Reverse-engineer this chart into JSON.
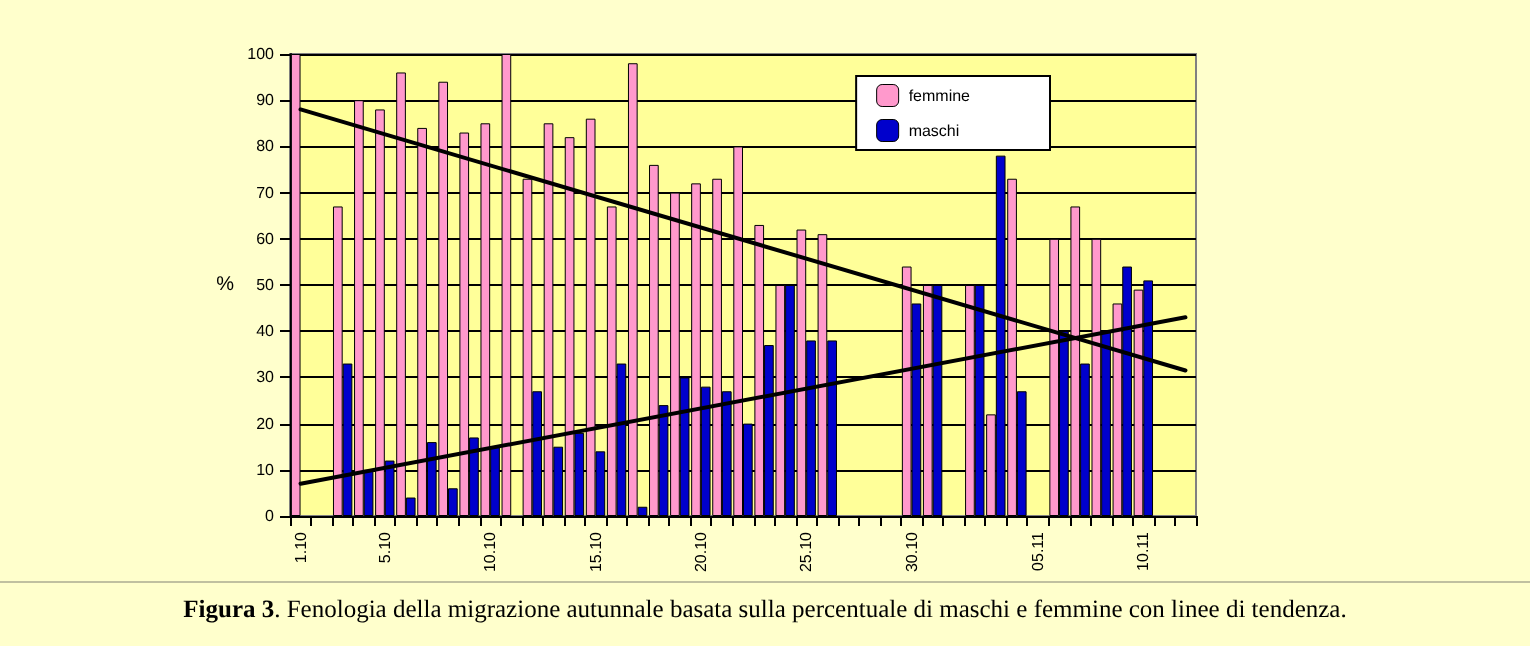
{
  "chart_data": {
    "type": "bar",
    "categories": [
      "1.10",
      null,
      null,
      null,
      "5.10",
      null,
      null,
      null,
      null,
      "10.10",
      null,
      null,
      null,
      null,
      "15.10",
      null,
      null,
      null,
      null,
      "20.10",
      null,
      null,
      null,
      null,
      "25.10",
      null,
      null,
      null,
      null,
      "30.10",
      null,
      null,
      null,
      null,
      null,
      "05.11",
      null,
      null,
      null,
      null,
      "10.11",
      null,
      null
    ],
    "series": [
      {
        "name": "femmine",
        "color": "#ff99cc",
        "values": [
          100,
          null,
          67,
          90,
          88,
          96,
          84,
          94,
          83,
          85,
          100,
          73,
          85,
          82,
          86,
          67,
          98,
          76,
          70,
          72,
          73,
          80,
          63,
          50,
          62,
          61,
          null,
          null,
          null,
          54,
          50,
          null,
          50,
          22,
          73,
          null,
          60,
          67,
          60,
          46,
          49,
          null,
          null
        ]
      },
      {
        "name": "maschi",
        "color": "#0000cc",
        "values": [
          null,
          null,
          33,
          10,
          12,
          4,
          16,
          6,
          17,
          15,
          null,
          27,
          15,
          18,
          14,
          33,
          2,
          24,
          30,
          28,
          27,
          20,
          37,
          50,
          38,
          38,
          null,
          null,
          null,
          46,
          50,
          null,
          50,
          78,
          27,
          null,
          40,
          33,
          40,
          54,
          51,
          null,
          null
        ]
      },
      {
        "type": "line",
        "color": "#000000",
        "values": [
          88,
          null,
          null,
          null,
          null,
          null,
          null,
          null,
          null,
          null,
          null,
          null,
          null,
          null,
          null,
          null,
          null,
          null,
          null,
          null,
          null,
          null,
          null,
          null,
          null,
          null,
          null,
          null,
          null,
          null,
          null,
          null,
          null,
          null,
          null,
          null,
          null,
          null,
          null,
          null,
          null,
          null,
          31.5
        ]
      },
      {
        "type": "line",
        "color": "#000000",
        "values": [
          7,
          null,
          null,
          null,
          null,
          null,
          null,
          null,
          null,
          null,
          null,
          null,
          null,
          null,
          null,
          null,
          null,
          null,
          null,
          null,
          null,
          null,
          null,
          null,
          null,
          null,
          null,
          null,
          null,
          null,
          null,
          null,
          null,
          null,
          null,
          null,
          null,
          null,
          null,
          null,
          null,
          null,
          43
        ]
      }
    ],
    "ylabel": "%",
    "ylim": [
      0,
      100
    ],
    "yticks": [
      0,
      10,
      20,
      30,
      40,
      50,
      60,
      70,
      80,
      90,
      100
    ],
    "grid": "y",
    "legend": "top right",
    "marker": "none",
    "annotations": [
      "Figura 3. Fenologia della migrazione autunnale basata sulla percentuale di maschi e femmine con linee di tendenza."
    ]
  }
}
